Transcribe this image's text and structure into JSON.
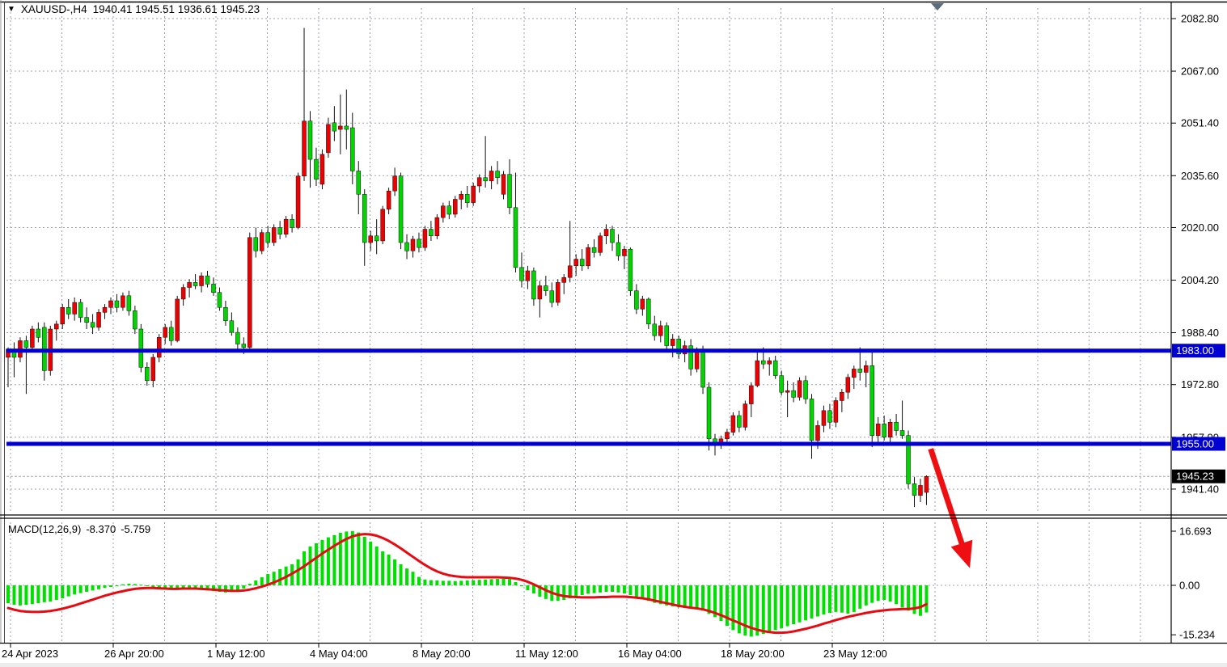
{
  "header": {
    "dropdown_icon": "▼",
    "symbol_period": "XAUUSD-,H4",
    "ohlc": "1940.41 1945.51 1936.61 1945.23"
  },
  "colors": {
    "bull_candle": "#ee0000",
    "bear_candle": "#00d500",
    "wick": "#111111",
    "hline": "#0000d2",
    "badge_blue": "#0000d2",
    "badge_black": "#000000",
    "grid": "#9aa3ad",
    "macd_histogram": "#00e000",
    "macd_signal": "#e80a12",
    "arrow": "#ef0f13",
    "marker": "#5c6b7a",
    "current_price_line": "#a8a8a8"
  },
  "chart_data": [
    {
      "type": "candlestick",
      "title": "XAUUSD- H4 candlestick chart",
      "ylim": [
        1933,
        2086.5
      ],
      "grid": true,
      "price_ticks": [
        2082.8,
        2067.0,
        2051.4,
        2035.6,
        2020.0,
        2004.2,
        1988.4,
        1972.8,
        1957.0,
        1941.4
      ],
      "hlines": [
        {
          "price": 1983.0,
          "label": "1983.00"
        },
        {
          "price": 1955.0,
          "label": "1955.00"
        }
      ],
      "current_price": {
        "price": 1945.23,
        "label": "1945.23"
      },
      "time_ticks": [
        "24 Apr 2023",
        "26 Apr 20:00",
        "1 May 12:00",
        "4 May 04:00",
        "8 May 20:00",
        "11 May 12:00",
        "16 May 04:00",
        "18 May 20:00",
        "23 May 12:00"
      ],
      "candles": [
        [
          1981,
          1984,
          1972,
          1983.5
        ],
        [
          1983.5,
          1985.5,
          1975,
          1981
        ],
        [
          1981,
          1987,
          1979.5,
          1986
        ],
        [
          1986,
          1987.5,
          1970,
          1984
        ],
        [
          1984,
          1990.5,
          1982.5,
          1989.5
        ],
        [
          1989.5,
          1991.5,
          1985.5,
          1987
        ],
        [
          1990,
          1991.5,
          1974,
          1977
        ],
        [
          1977,
          1990.5,
          1975.5,
          1989.5
        ],
        [
          1989.5,
          1992,
          1986,
          1991
        ],
        [
          1991,
          1997,
          1989.5,
          1996
        ],
        [
          1996,
          1998.5,
          1992.5,
          1994
        ],
        [
          1994,
          1999,
          1992,
          1997.5
        ],
        [
          1997.5,
          1998.5,
          1991.5,
          1993
        ],
        [
          1993,
          1996,
          1989.5,
          1991.5
        ],
        [
          1991.5,
          1994,
          1988,
          1990
        ],
        [
          1990,
          1995.5,
          1989,
          1994.5
        ],
        [
          1994.5,
          1997,
          1992.5,
          1996
        ],
        [
          1996,
          1999,
          1994,
          1998
        ],
        [
          1998,
          2000,
          1994.5,
          1996
        ],
        [
          1996,
          2000.5,
          1995,
          1999.5
        ],
        [
          1999.5,
          2001,
          1993.5,
          1995
        ],
        [
          1995,
          1996.5,
          1988,
          1989.5
        ],
        [
          1989.5,
          1991,
          1976.5,
          1978
        ],
        [
          1978,
          1979.5,
          1972.5,
          1974
        ],
        [
          1974,
          1982,
          1972,
          1981
        ],
        [
          1981,
          1988,
          1979.5,
          1987
        ],
        [
          1987,
          1991,
          1985,
          1990
        ],
        [
          1990,
          1992,
          1984.5,
          1986
        ],
        [
          1986,
          1999.5,
          1985.5,
          1998.5
        ],
        [
          1998.5,
          2003,
          1996.5,
          2002
        ],
        [
          2002,
          2004.5,
          1999,
          2003.5
        ],
        [
          2003.5,
          2006,
          2001.5,
          2002.5
        ],
        [
          2002.5,
          2006.5,
          2000.5,
          2005.5
        ],
        [
          2005.5,
          2007,
          2002,
          2003
        ],
        [
          2003,
          2005,
          1999.5,
          2000.5
        ],
        [
          2000.5,
          2002,
          1995,
          1996
        ],
        [
          1996,
          1998,
          1990.5,
          1992
        ],
        [
          1992,
          1994.5,
          1987.5,
          1988.5
        ],
        [
          1988.5,
          1990,
          1983.5,
          1985
        ],
        [
          1985,
          1987,
          1982,
          1984
        ],
        [
          1984,
          2018.5,
          1983.5,
          2017
        ],
        [
          2017,
          2020,
          2011,
          2013
        ],
        [
          2013,
          2019.5,
          2012,
          2018.5
        ],
        [
          2018.5,
          2020.5,
          2014,
          2015.5
        ],
        [
          2015.5,
          2021,
          2014.5,
          2020
        ],
        [
          2020,
          2022,
          2016.5,
          2018
        ],
        [
          2018,
          2023.5,
          2017,
          2022.5
        ],
        [
          2022.5,
          2024,
          2018.5,
          2020
        ],
        [
          2020,
          2036.5,
          2019.5,
          2035.5
        ],
        [
          2035.5,
          2080,
          2034,
          2052
        ],
        [
          2052,
          2055,
          2032,
          2040.5
        ],
        [
          2040.5,
          2044,
          2032.5,
          2034.5
        ],
        [
          2033,
          2043.5,
          2031.5,
          2042
        ],
        [
          2042.5,
          2053,
          2041,
          2051
        ],
        [
          2051.5,
          2056.5,
          2046,
          2049
        ],
        [
          2049.5,
          2060,
          2042,
          2050.5
        ],
        [
          2050.5,
          2061.5,
          2043.5,
          2049.5
        ],
        [
          2050,
          2054.5,
          2033,
          2037
        ],
        [
          2037,
          2040,
          2024,
          2030
        ],
        [
          2030,
          2031.5,
          2008.5,
          2015.5
        ],
        [
          2015.5,
          2019,
          2013,
          2017.5
        ],
        [
          2017.5,
          2022.5,
          2012,
          2016
        ],
        [
          2016,
          2026.5,
          2015,
          2025.5
        ],
        [
          2025.5,
          2032,
          2024,
          2031
        ],
        [
          2031,
          2038,
          2029.5,
          2035.5
        ],
        [
          2035.5,
          2036.5,
          2013.5,
          2015.5
        ],
        [
          2015.5,
          2018,
          2010.5,
          2013
        ],
        [
          2013,
          2017.5,
          2011,
          2016.5
        ],
        [
          2016.5,
          2018.5,
          2012.5,
          2014
        ],
        [
          2014,
          2020.5,
          2013,
          2019.5
        ],
        [
          2019.5,
          2022,
          2016,
          2017.5
        ],
        [
          2017.5,
          2024,
          2016.5,
          2023
        ],
        [
          2023,
          2027.5,
          2021.5,
          2026.5
        ],
        [
          2026.5,
          2028,
          2022.5,
          2024
        ],
        [
          2024,
          2029.5,
          2023,
          2028.5
        ],
        [
          2028.5,
          2031,
          2025.5,
          2030
        ],
        [
          2030,
          2032.5,
          2026,
          2027.5
        ],
        [
          2027.5,
          2033.5,
          2026.5,
          2032.5
        ],
        [
          2032.5,
          2036,
          2030.5,
          2035
        ],
        [
          2035,
          2047.5,
          2032,
          2034
        ],
        [
          2034,
          2038.5,
          2031.5,
          2037
        ],
        [
          2037,
          2040,
          2033,
          2035
        ],
        [
          2030,
          2037,
          2028.5,
          2036
        ],
        [
          2036,
          2040.5,
          2024,
          2026
        ],
        [
          2026,
          2036.5,
          2006.5,
          2008
        ],
        [
          2008,
          2012.5,
          2002,
          2004
        ],
        [
          2004,
          2008.5,
          2001.5,
          2007
        ],
        [
          2007,
          2008,
          1996.5,
          1998.5
        ],
        [
          1998.5,
          2004,
          1993,
          2002.5
        ],
        [
          2002.5,
          2005.5,
          1999.5,
          2001
        ],
        [
          2001,
          2003.5,
          1996,
          1997.5
        ],
        [
          1997.5,
          2004.5,
          1996.5,
          2003.5
        ],
        [
          2003.5,
          2006,
          2000,
          2005
        ],
        [
          2005,
          2022,
          2003.5,
          2008.5
        ],
        [
          2008.5,
          2012,
          2005.5,
          2010.5
        ],
        [
          2010.5,
          2013.5,
          2007,
          2008.5
        ],
        [
          2008.5,
          2015,
          2007.5,
          2014
        ],
        [
          2014,
          2016.5,
          2011,
          2012.5
        ],
        [
          2012.5,
          2018.5,
          2011.5,
          2017.5
        ],
        [
          2017.5,
          2021,
          2015,
          2019.5
        ],
        [
          2019.5,
          2020.5,
          2013,
          2015.5
        ],
        [
          2015.5,
          2018,
          2010,
          2011.5
        ],
        [
          2011.5,
          2014.5,
          2007.5,
          2013.5
        ],
        [
          2013.5,
          2014,
          1999.5,
          2001
        ],
        [
          2001,
          2003,
          1994,
          1995.5
        ],
        [
          1995.5,
          1999.5,
          1993.5,
          1998.5
        ],
        [
          1998.5,
          1999,
          1989.5,
          1991
        ],
        [
          1991,
          1993.5,
          1986,
          1987.5
        ],
        [
          1987.5,
          1992,
          1985.5,
          1990.5
        ],
        [
          1990.5,
          1991.5,
          1983,
          1984.5
        ],
        [
          1984.5,
          1988,
          1981,
          1986.5
        ],
        [
          1986.5,
          1987.5,
          1980.5,
          1982
        ],
        [
          1982,
          1986,
          1979.5,
          1984.5
        ],
        [
          1984.5,
          1986.5,
          1975.5,
          1977.5
        ],
        [
          1977.5,
          1984,
          1976.5,
          1983
        ],
        [
          1983,
          1984.5,
          1970,
          1972
        ],
        [
          1972,
          1973.5,
          1953,
          1956.5
        ],
        [
          1956.5,
          1958,
          1951.5,
          1955
        ],
        [
          1955,
          1957.5,
          1953.5,
          1956.5
        ],
        [
          1956.5,
          1959.5,
          1955,
          1958.5
        ],
        [
          1958.5,
          1964.5,
          1957.5,
          1963.5
        ],
        [
          1963.5,
          1965,
          1958.5,
          1960
        ],
        [
          1960,
          1968,
          1959,
          1967
        ],
        [
          1967,
          1973.5,
          1963,
          1972.5
        ],
        [
          1972.5,
          1983,
          1972,
          1980
        ],
        [
          1980,
          1984,
          1977.5,
          1979
        ],
        [
          1979,
          1981,
          1975.5,
          1980
        ],
        [
          1980,
          1981.5,
          1974.5,
          1975.5
        ],
        [
          1975.5,
          1977,
          1969.5,
          1970.5
        ],
        [
          1970.5,
          1974,
          1963,
          1971
        ],
        [
          1971,
          1973.5,
          1967.5,
          1969
        ],
        [
          1969,
          1975,
          1968,
          1974
        ],
        [
          1974,
          1975.5,
          1967,
          1968.5
        ],
        [
          1968.5,
          1970,
          1950.5,
          1956
        ],
        [
          1956,
          1962,
          1953.5,
          1960.5
        ],
        [
          1960.5,
          1966.5,
          1958.5,
          1965
        ],
        [
          1965,
          1967,
          1959.5,
          1961.5
        ],
        [
          1961.5,
          1969,
          1960,
          1968
        ],
        [
          1968,
          1971.5,
          1964.5,
          1970.5
        ],
        [
          1970.5,
          1976,
          1968.5,
          1975
        ],
        [
          1975,
          1978.5,
          1971.5,
          1977.5
        ],
        [
          1977.5,
          1984,
          1974,
          1976.5
        ],
        [
          1976.5,
          1980,
          1972,
          1978.5
        ],
        [
          1978.5,
          1983,
          1954,
          1957.5
        ],
        [
          1957.5,
          1963,
          1955,
          1961
        ],
        [
          1961,
          1963.5,
          1956,
          1957
        ],
        [
          1957,
          1962.5,
          1955.5,
          1961.5
        ],
        [
          1961.5,
          1964,
          1957.5,
          1959
        ],
        [
          1959,
          1968,
          1956.5,
          1957.5
        ],
        [
          1957.5,
          1959,
          1941.5,
          1943
        ],
        [
          1943,
          1945,
          1936,
          1939.5
        ],
        [
          1939.5,
          1944.5,
          1937.5,
          1942.5
        ],
        [
          1940.41,
          1945.51,
          1936.61,
          1945.23
        ]
      ],
      "annotations": {
        "arrow": {
          "name": "bearish-projection-arrow",
          "from_price": 1953.5,
          "to_price": 1917.5,
          "from_bar": 152.7,
          "to_bar": 159.3
        }
      }
    },
    {
      "type": "macd",
      "label": "MACD(12,26,9)",
      "macd_value": "-8.370",
      "signal_value": "-5.759",
      "scale_labels": [
        "16.693",
        "0.00",
        "-15.234"
      ],
      "ylim": [
        -15.234,
        16.693
      ],
      "histogram": [
        -5.5,
        -6,
        -6.2,
        -6,
        -5.8,
        -5.5,
        -5.2,
        -5,
        -4.5,
        -4,
        -3.4,
        -2.8,
        -2.4,
        -2,
        -1.6,
        -1.2,
        -0.8,
        -0.5,
        -0.2,
        0.3,
        0.5,
        0.4,
        0.2,
        -0.2,
        -0.5,
        -0.8,
        -1,
        -1.2,
        -1,
        -0.8,
        -1,
        -1.2,
        -1.4,
        -1.6,
        -1.8,
        -2,
        -2.2,
        -2,
        -1.8,
        -1,
        0.5,
        1.5,
        2.5,
        3.5,
        4.2,
        5,
        5.8,
        6.5,
        8,
        10.5,
        12,
        13,
        14,
        14.8,
        15.5,
        16.2,
        16.6,
        16.7,
        16.3,
        15,
        13.5,
        12,
        10.5,
        9.5,
        8,
        6.5,
        5.2,
        4.2,
        2.6,
        1.8,
        1.6,
        1.5,
        1.4,
        1.4,
        1.3,
        1.4,
        1.5,
        1.6,
        1.7,
        1.8,
        1.9,
        2,
        2,
        1.9,
        1,
        -0.3,
        -1.5,
        -2.5,
        -3.5,
        -4.2,
        -4.8,
        -4.8,
        -4.5,
        -4,
        -3.5,
        -3,
        -2.6,
        -2.4,
        -2.2,
        -2,
        -2,
        -2.2,
        -2.5,
        -3,
        -3.6,
        -4.2,
        -4.8,
        -5.4,
        -5.8,
        -6.2,
        -6.5,
        -6.8,
        -7,
        -7,
        -7.2,
        -7.8,
        -8.8,
        -9.8,
        -11,
        -12.5,
        -13.8,
        -14.8,
        -15.5,
        -15.8,
        -15.5,
        -15,
        -14.4,
        -13.8,
        -13.2,
        -12.6,
        -12,
        -11.4,
        -10.8,
        -10.2,
        -9.6,
        -9,
        -8.5,
        -8.2,
        -8.4,
        -8.7,
        -8.2,
        -7.2,
        -6.2,
        -5.4,
        -4.8,
        -4.5,
        -5,
        -5.8,
        -6.8,
        -7.8,
        -8.8,
        -9.4,
        -8.37
      ],
      "signal": [
        -7,
        -7.5,
        -7.9,
        -8.1,
        -8.2,
        -8.2,
        -8.1,
        -7.9,
        -7.6,
        -7.2,
        -6.7,
        -6.2,
        -5.6,
        -5,
        -4.4,
        -3.8,
        -3.2,
        -2.7,
        -2.2,
        -1.8,
        -1.4,
        -1.1,
        -0.9,
        -0.8,
        -0.8,
        -0.9,
        -1,
        -1.1,
        -1.1,
        -1,
        -1,
        -1,
        -1.1,
        -1.2,
        -1.3,
        -1.5,
        -1.6,
        -1.7,
        -1.7,
        -1.6,
        -1.3,
        -0.9,
        -0.4,
        0.2,
        0.9,
        1.7,
        2.6,
        3.6,
        4.7,
        5.9,
        7.2,
        8.5,
        9.8,
        11,
        12.2,
        13.3,
        14.3,
        15.1,
        15.6,
        15.8,
        15.7,
        15.3,
        14.6,
        13.7,
        12.6,
        11.4,
        10.1,
        8.8,
        7.5,
        6.3,
        5.2,
        4.3,
        3.6,
        3.1,
        2.8,
        2.6,
        2.5,
        2.5,
        2.5,
        2.5,
        2.5,
        2.5,
        2.4,
        2.3,
        2.1,
        1.7,
        1.1,
        0.3,
        -0.6,
        -1.5,
        -2.3,
        -2.9,
        -3.3,
        -3.5,
        -3.6,
        -3.7,
        -3.7,
        -3.7,
        -3.6,
        -3.6,
        -3.5,
        -3.5,
        -3.5,
        -3.6,
        -3.8,
        -4,
        -4.3,
        -4.7,
        -5.1,
        -5.5,
        -5.9,
        -6.3,
        -6.6,
        -6.9,
        -7.1,
        -7.4,
        -7.9,
        -8.5,
        -9.2,
        -10,
        -10.8,
        -11.6,
        -12.4,
        -13.1,
        -13.7,
        -14.1,
        -14.4,
        -14.6,
        -14.6,
        -14.5,
        -14.2,
        -13.8,
        -13.4,
        -12.9,
        -12.4,
        -11.8,
        -11.3,
        -10.7,
        -10.2,
        -9.7,
        -9.3,
        -8.9,
        -8.5,
        -8.2,
        -7.9,
        -7.7,
        -7.5,
        -7.4,
        -7.3,
        -7.3,
        -7.1,
        -6.7,
        -5.8
      ]
    }
  ]
}
